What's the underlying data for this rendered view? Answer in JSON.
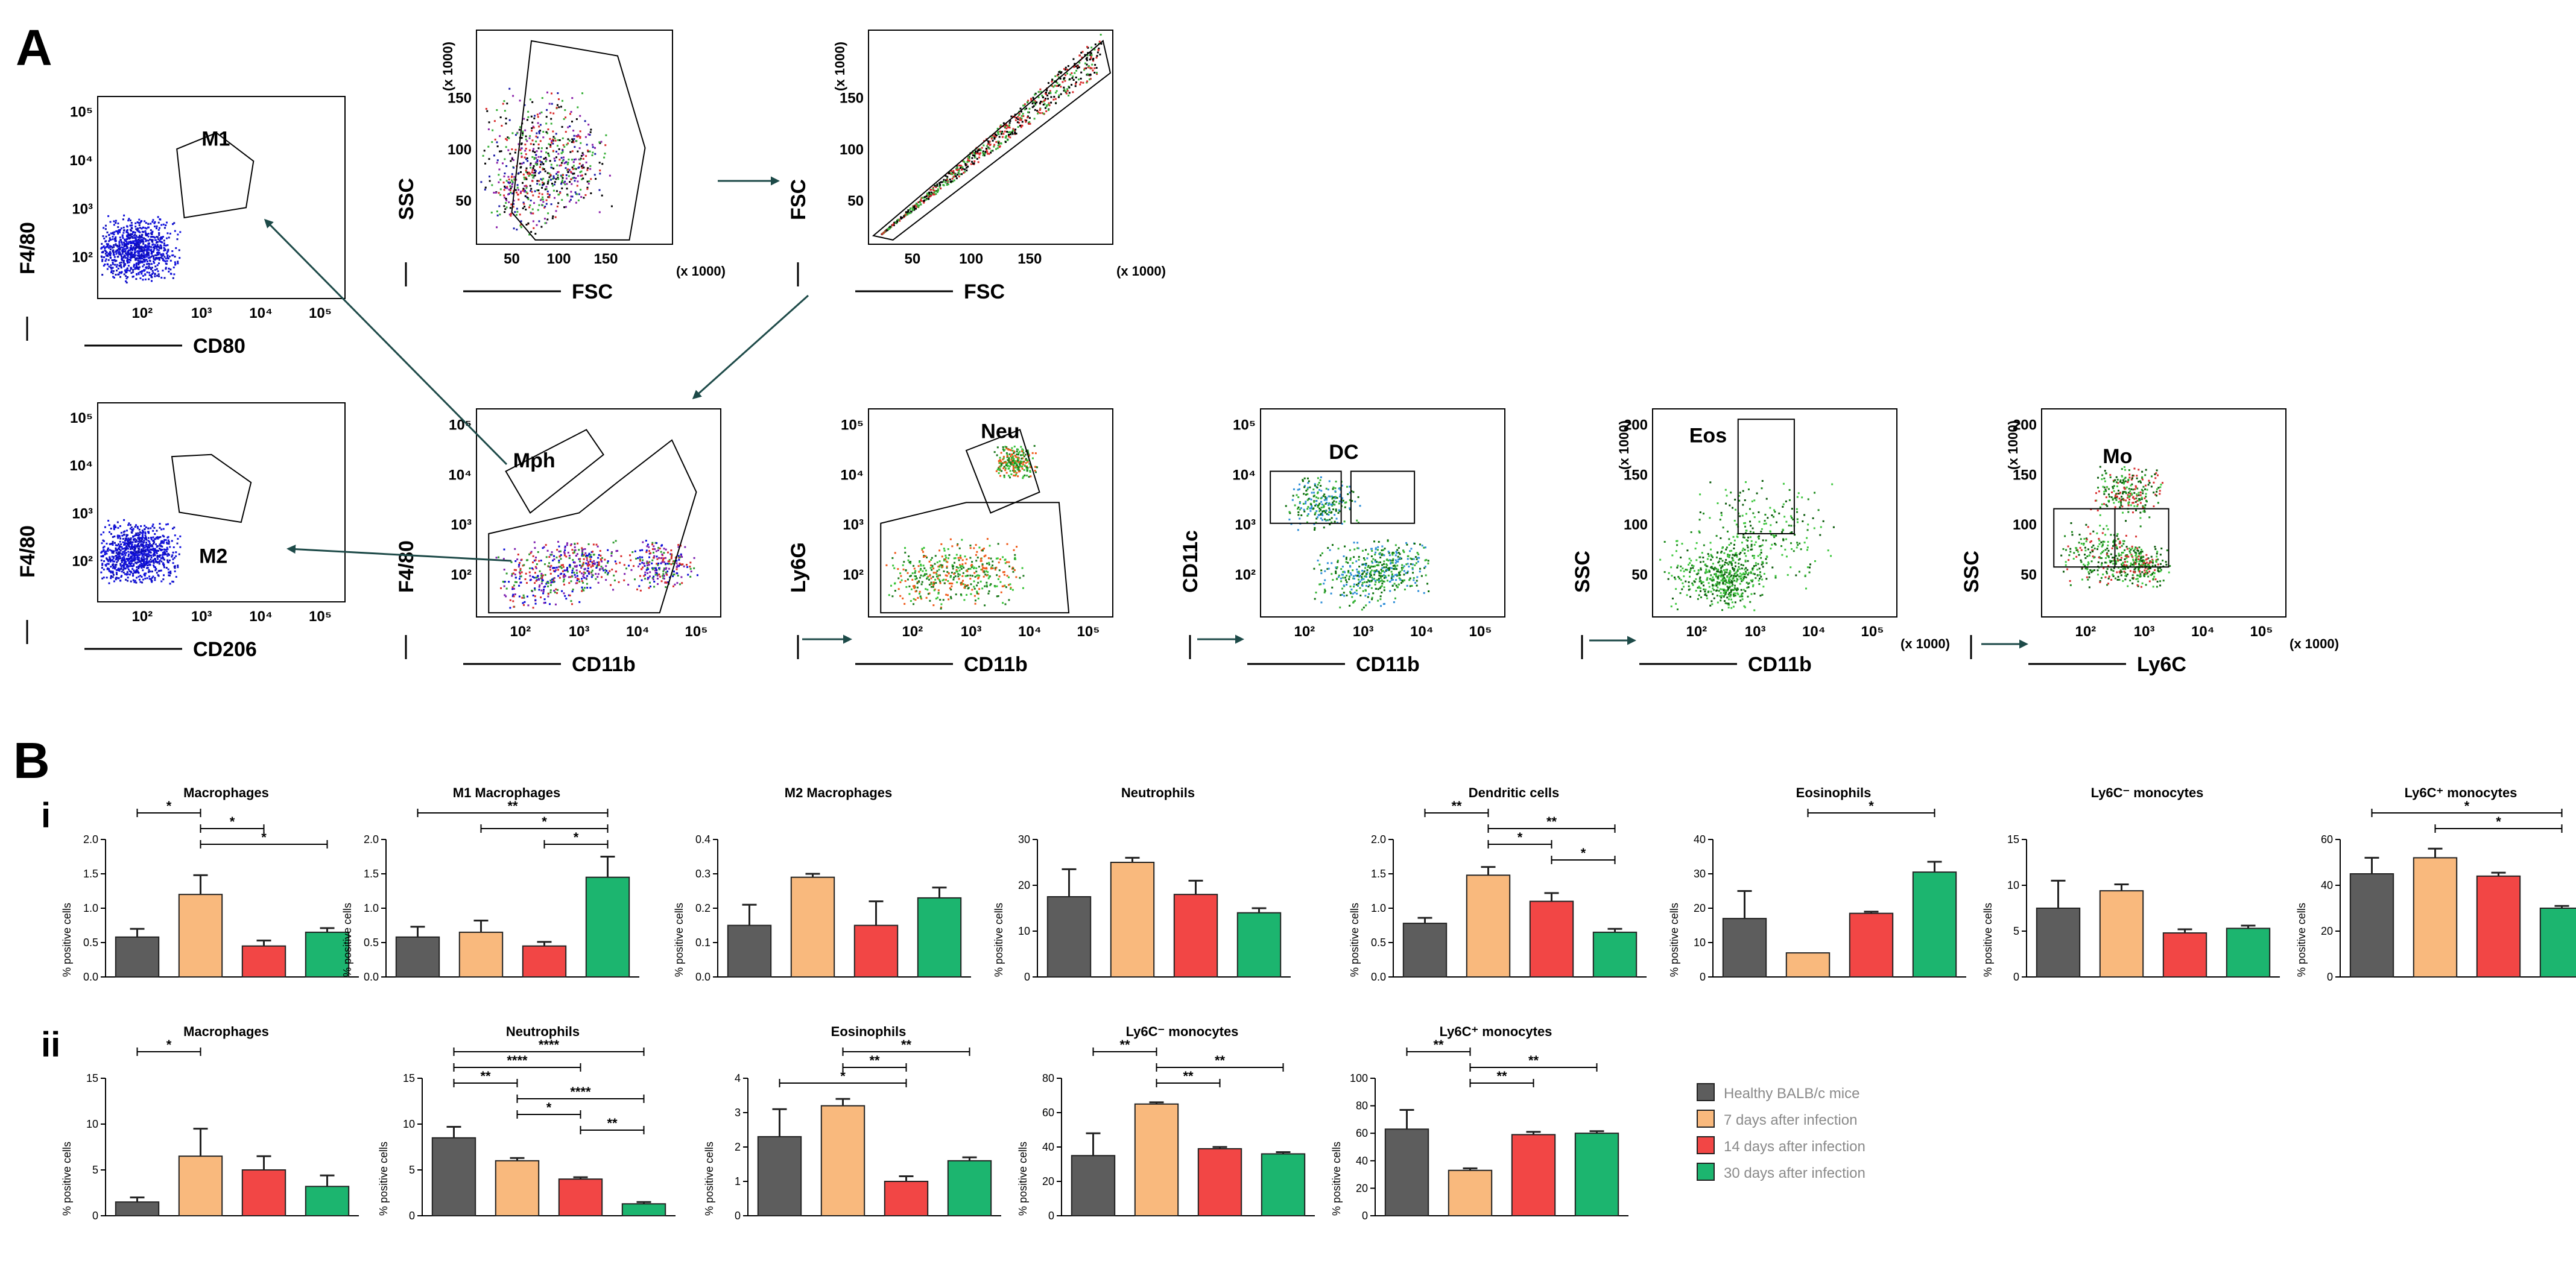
{
  "panel_a": {
    "label": "A",
    "plots": [
      {
        "key": "m1",
        "ylabel": "F4/80",
        "xlabel": "CD80",
        "xticks": [
          "10²",
          "10³",
          "10⁴",
          "10⁵"
        ],
        "yticks": [
          "10²",
          "10³",
          "10⁴",
          "10⁵"
        ],
        "gates": [
          "M1"
        ]
      },
      {
        "key": "fsc_ssc",
        "ylabel": "SSC",
        "xlabel": "FSC",
        "xticks": [
          "50",
          "100",
          "150"
        ],
        "yticks": [
          "50",
          "100",
          "150"
        ],
        "unit": "(x 1000)"
      },
      {
        "key": "fsc_fsc",
        "ylabel": "FSC",
        "xlabel": "FSC",
        "xticks": [
          "50",
          "100",
          "150"
        ],
        "yticks": [
          "50",
          "100",
          "150"
        ],
        "unit": "(x 1000)"
      },
      {
        "key": "m2",
        "ylabel": "F4/80",
        "xlabel": "CD206",
        "xticks": [
          "10²",
          "10³",
          "10⁴",
          "10⁵"
        ],
        "yticks": [
          "10²",
          "10³",
          "10⁴",
          "10⁵"
        ],
        "gates": [
          "M2"
        ]
      },
      {
        "key": "mph",
        "ylabel": "F4/80",
        "xlabel": "CD11b",
        "xticks": [
          "10²",
          "10³",
          "10⁴",
          "10⁵"
        ],
        "yticks": [
          "10²",
          "10³",
          "10⁴",
          "10⁵"
        ],
        "gates": [
          "Mph"
        ]
      },
      {
        "key": "neu",
        "ylabel": "Ly6G",
        "xlabel": "CD11b",
        "xticks": [
          "10²",
          "10³",
          "10⁴",
          "10⁵"
        ],
        "yticks": [
          "10²",
          "10³",
          "10⁴",
          "10⁵"
        ],
        "gates": [
          "Neu"
        ]
      },
      {
        "key": "dc",
        "ylabel": "CD11c",
        "xlabel": "CD11b",
        "xticks": [
          "10²",
          "10³",
          "10⁴",
          "10⁵"
        ],
        "yticks": [
          "10²",
          "10³",
          "10⁴",
          "10⁵"
        ],
        "gates": [
          "DC"
        ]
      },
      {
        "key": "eos",
        "ylabel": "SSC",
        "xlabel": "CD11b",
        "xticks": [
          "10²",
          "10³",
          "10⁴",
          "10⁵"
        ],
        "yticks": [
          "50",
          "100",
          "150",
          "200"
        ],
        "unit": "(x 1000)",
        "gates": [
          "Eos"
        ]
      },
      {
        "key": "mo",
        "ylabel": "SSC",
        "xlabel": "Ly6C",
        "xticks": [
          "10²",
          "10³",
          "10⁴",
          "10⁵"
        ],
        "yticks": [
          "50",
          "100",
          "150",
          "200"
        ],
        "unit": "(x 1000)",
        "gates": [
          "Mo"
        ]
      }
    ]
  },
  "panel_b": {
    "label": "B",
    "row_i": "i",
    "row_ii": "ii",
    "ylabel": "% positive cells"
  },
  "legend": {
    "items": [
      {
        "label": "Healthy BALB/c mice",
        "color": "#5d5d5d"
      },
      {
        "label": "7 days after infection",
        "color": "#f9b97d"
      },
      {
        "label": "14 days after infection",
        "color": "#f24645"
      },
      {
        "label": "30 days after infection",
        "color": "#1cb56f"
      }
    ]
  },
  "chart_data": [
    {
      "type": "bar",
      "panel": "B-i",
      "title": "Macrophages",
      "ylabel": "% positive cells",
      "ylim": [
        0,
        2.0
      ],
      "yticks": [
        "0.0",
        "0.5",
        "1.0",
        "1.5",
        "2.0"
      ],
      "categories": [
        "Healthy BALB/c mice",
        "7 days after infection",
        "14 days after infection",
        "30 days after infection"
      ],
      "values": [
        0.58,
        1.2,
        0.45,
        0.65
      ],
      "errors": [
        0.12,
        0.28,
        0.08,
        0.06
      ],
      "significance": [
        {
          "from": 0,
          "to": 1,
          "label": "*"
        },
        {
          "from": 1,
          "to": 2,
          "label": "*"
        },
        {
          "from": 1,
          "to": 3,
          "label": "*"
        }
      ]
    },
    {
      "type": "bar",
      "panel": "B-i",
      "title": "M1 Macrophages",
      "ylabel": "% positive cells",
      "ylim": [
        0,
        2.0
      ],
      "yticks": [
        "0.0",
        "0.5",
        "1.0",
        "1.5",
        "2.0"
      ],
      "categories": [
        "Healthy BALB/c mice",
        "7 days after infection",
        "14 days after infection",
        "30 days after infection"
      ],
      "values": [
        0.58,
        0.65,
        0.45,
        1.45
      ],
      "errors": [
        0.15,
        0.17,
        0.06,
        0.3
      ],
      "significance": [
        {
          "from": 0,
          "to": 3,
          "label": "**"
        },
        {
          "from": 1,
          "to": 3,
          "label": "*"
        },
        {
          "from": 2,
          "to": 3,
          "label": "*"
        }
      ]
    },
    {
      "type": "bar",
      "panel": "B-i",
      "title": "M2 Macrophages",
      "ylabel": "% positive cells",
      "ylim": [
        0,
        0.4
      ],
      "yticks": [
        "0.0",
        "0.1",
        "0.2",
        "0.3",
        "0.4"
      ],
      "categories": [
        "Healthy BALB/c mice",
        "7 days after infection",
        "14 days after infection",
        "30 days after infection"
      ],
      "values": [
        0.15,
        0.29,
        0.15,
        0.23
      ],
      "errors": [
        0.06,
        0.01,
        0.07,
        0.03
      ],
      "significance": []
    },
    {
      "type": "bar",
      "panel": "B-i",
      "title": "Neutrophils",
      "ylabel": "% positive cells",
      "ylim": [
        0,
        30
      ],
      "yticks": [
        "0",
        "10",
        "20",
        "30"
      ],
      "categories": [
        "Healthy BALB/c mice",
        "7 days after infection",
        "14 days after infection",
        "30 days after infection"
      ],
      "values": [
        17.5,
        25.0,
        18.0,
        14.0
      ],
      "errors": [
        6.0,
        1.0,
        3.0,
        1.0
      ],
      "significance": []
    },
    {
      "type": "bar",
      "panel": "B-i",
      "title": "Dendritic cells",
      "ylabel": "% positive cells",
      "ylim": [
        0,
        2.0
      ],
      "yticks": [
        "0.0",
        "0.5",
        "1.0",
        "1.5",
        "2.0"
      ],
      "categories": [
        "Healthy BALB/c mice",
        "7 days after infection",
        "14 days after infection",
        "30 days after infection"
      ],
      "values": [
        0.78,
        1.48,
        1.1,
        0.65
      ],
      "errors": [
        0.08,
        0.12,
        0.12,
        0.05
      ],
      "significance": [
        {
          "from": 0,
          "to": 1,
          "label": "**"
        },
        {
          "from": 1,
          "to": 3,
          "label": "**"
        },
        {
          "from": 1,
          "to": 2,
          "label": "*"
        },
        {
          "from": 2,
          "to": 3,
          "label": "*"
        }
      ]
    },
    {
      "type": "bar",
      "panel": "B-i",
      "title": "Eosinophils",
      "ylabel": "% positive cells",
      "ylim": [
        0,
        40
      ],
      "yticks": [
        "0",
        "10",
        "20",
        "30",
        "40"
      ],
      "categories": [
        "Healthy BALB/c mice",
        "7 days after infection",
        "14 days after infection",
        "30 days after infection"
      ],
      "values": [
        17.0,
        7.0,
        18.5,
        30.5
      ],
      "errors": [
        8.0,
        0,
        0.5,
        3.0
      ],
      "significance": [
        {
          "from": 1,
          "to": 3,
          "label": "*"
        }
      ]
    },
    {
      "type": "bar",
      "panel": "B-i",
      "title": "Ly6C⁻ monocytes",
      "ylabel": "% positive cells",
      "ylim": [
        0,
        15
      ],
      "yticks": [
        "0",
        "5",
        "10",
        "15"
      ],
      "categories": [
        "Healthy BALB/c mice",
        "7 days after infection",
        "14 days after infection",
        "30 days after infection"
      ],
      "values": [
        7.5,
        9.4,
        4.8,
        5.3
      ],
      "errors": [
        3.0,
        0.7,
        0.4,
        0.3
      ],
      "significance": []
    },
    {
      "type": "bar",
      "panel": "B-i",
      "title": "Ly6C⁺ monocytes",
      "ylabel": "% positive cells",
      "ylim": [
        0,
        60
      ],
      "yticks": [
        "0",
        "20",
        "40",
        "60"
      ],
      "categories": [
        "Healthy BALB/c mice",
        "7 days after infection",
        "14 days after infection",
        "30 days after infection"
      ],
      "values": [
        45.0,
        52.0,
        44.0,
        30.0
      ],
      "errors": [
        7.0,
        4.0,
        1.5,
        1.0
      ],
      "significance": [
        {
          "from": 0,
          "to": 3,
          "label": "*"
        },
        {
          "from": 1,
          "to": 3,
          "label": "*"
        }
      ]
    },
    {
      "type": "bar",
      "panel": "B-ii",
      "title": "Macrophages",
      "ylabel": "% positive cells",
      "ylim": [
        0,
        15
      ],
      "yticks": [
        "0",
        "5",
        "10",
        "15"
      ],
      "categories": [
        "Healthy BALB/c mice",
        "7 days after infection",
        "14 days after infection",
        "30 days after infection"
      ],
      "values": [
        1.5,
        6.5,
        5.0,
        3.2
      ],
      "errors": [
        0.5,
        3.0,
        1.5,
        1.2
      ],
      "significance": [
        {
          "from": 0,
          "to": 1,
          "label": "*"
        }
      ]
    },
    {
      "type": "bar",
      "panel": "B-ii",
      "title": "Neutrophils",
      "ylabel": "% positive cells",
      "ylim": [
        0,
        15
      ],
      "yticks": [
        "0",
        "5",
        "10",
        "15"
      ],
      "categories": [
        "Healthy BALB/c mice",
        "7 days after infection",
        "14 days after infection",
        "30 days after infection"
      ],
      "values": [
        8.5,
        6.0,
        4.0,
        1.3
      ],
      "errors": [
        1.2,
        0.3,
        0.2,
        0.2
      ],
      "significance": [
        {
          "from": 0,
          "to": 3,
          "label": "****"
        },
        {
          "from": 0,
          "to": 2,
          "label": "****"
        },
        {
          "from": 0,
          "to": 1,
          "label": "**"
        },
        {
          "from": 1,
          "to": 3,
          "label": "****"
        },
        {
          "from": 1,
          "to": 2,
          "label": "*"
        },
        {
          "from": 2,
          "to": 3,
          "label": "**"
        }
      ]
    },
    {
      "type": "bar",
      "panel": "B-ii",
      "title": "Eosinophils",
      "ylabel": "% positive cells",
      "ylim": [
        0,
        4
      ],
      "yticks": [
        "0",
        "1",
        "2",
        "3",
        "4"
      ],
      "categories": [
        "Healthy BALB/c mice",
        "7 days after infection",
        "14 days after infection",
        "30 days after infection"
      ],
      "values": [
        2.3,
        3.2,
        1.0,
        1.6
      ],
      "errors": [
        0.8,
        0.2,
        0.15,
        0.1
      ],
      "significance": [
        {
          "from": 1,
          "to": 3,
          "label": "**"
        },
        {
          "from": 1,
          "to": 2,
          "label": "**"
        },
        {
          "from": 0,
          "to": 2,
          "label": "*"
        }
      ]
    },
    {
      "type": "bar",
      "panel": "B-ii",
      "title": "Ly6C⁻ monocytes",
      "ylabel": "% positive cells",
      "ylim": [
        0,
        80
      ],
      "yticks": [
        "0",
        "20",
        "40",
        "60",
        "80"
      ],
      "categories": [
        "Healthy BALB/c mice",
        "7 days after infection",
        "14 days after infection",
        "30 days after infection"
      ],
      "values": [
        35.0,
        65.0,
        39.0,
        36.0
      ],
      "errors": [
        13.0,
        1.0,
        1.0,
        1.0
      ],
      "significance": [
        {
          "from": 0,
          "to": 1,
          "label": "**"
        },
        {
          "from": 1,
          "to": 3,
          "label": "**"
        },
        {
          "from": 1,
          "to": 2,
          "label": "**"
        }
      ]
    },
    {
      "type": "bar",
      "panel": "B-ii",
      "title": "Ly6C⁺ monocytes",
      "ylabel": "% positive cells",
      "ylim": [
        0,
        100
      ],
      "yticks": [
        "0",
        "20",
        "40",
        "60",
        "80",
        "100"
      ],
      "categories": [
        "Healthy BALB/c mice",
        "7 days after infection",
        "14 days after infection",
        "30 days after infection"
      ],
      "values": [
        63.0,
        33.0,
        59.0,
        60.0
      ],
      "errors": [
        14.0,
        1.5,
        2.0,
        1.5
      ],
      "significance": [
        {
          "from": 0,
          "to": 1,
          "label": "**"
        },
        {
          "from": 1,
          "to": 3,
          "label": "**"
        },
        {
          "from": 1,
          "to": 2,
          "label": "**"
        }
      ]
    }
  ]
}
